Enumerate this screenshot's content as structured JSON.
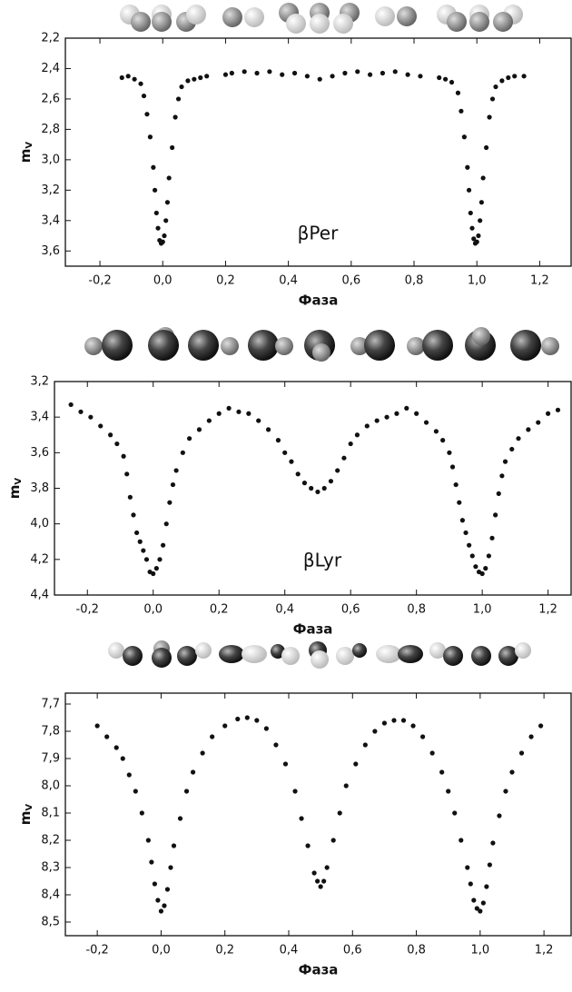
{
  "chart_data": [
    {
      "type": "scatter",
      "annotation": "βPer",
      "xlabel": "Фаза",
      "ylabel": "m",
      "ylabel_sub": "V",
      "color": "#111111",
      "xlim": [
        -0.31,
        1.3
      ],
      "ylim": [
        3.7,
        2.2
      ],
      "xticks": [
        {
          "value": -0.2,
          "label": "-0,2"
        },
        {
          "value": 0,
          "label": "0,0"
        },
        {
          "value": 0.2,
          "label": "0,2"
        },
        {
          "value": 0.4,
          "label": "0,4"
        },
        {
          "value": 0.6,
          "label": "0,6"
        },
        {
          "value": 0.8,
          "label": "0,8"
        },
        {
          "value": 1,
          "label": "1,0"
        },
        {
          "value": 1.2,
          "label": "1,2"
        }
      ],
      "yticks": [
        {
          "value": 2.2,
          "label": "2,2"
        },
        {
          "value": 2.4,
          "label": "2,4"
        },
        {
          "value": 2.6,
          "label": "2,6"
        },
        {
          "value": 2.8,
          "label": "2,8"
        },
        {
          "value": 3,
          "label": "3,0"
        },
        {
          "value": 3.2,
          "label": "3,2"
        },
        {
          "value": 3.4,
          "label": "3,4"
        },
        {
          "value": 3.6,
          "label": "3,6"
        }
      ],
      "x": [
        -0.13,
        -0.11,
        -0.09,
        -0.07,
        -0.06,
        -0.05,
        -0.04,
        -0.03,
        -0.025,
        -0.02,
        -0.015,
        -0.01,
        -0.005,
        0,
        0.005,
        0.01,
        0.015,
        0.02,
        0.03,
        0.04,
        0.05,
        0.06,
        0.08,
        0.1,
        0.12,
        0.14,
        0.2,
        0.22,
        0.26,
        0.3,
        0.34,
        0.38,
        0.42,
        0.46,
        0.5,
        0.54,
        0.58,
        0.62,
        0.66,
        0.7,
        0.74,
        0.78,
        0.82,
        0.88,
        0.9,
        0.92,
        0.94,
        0.95,
        0.96,
        0.97,
        0.975,
        0.98,
        0.985,
        0.99,
        0.995,
        1,
        1.005,
        1.01,
        1.015,
        1.02,
        1.03,
        1.04,
        1.05,
        1.06,
        1.08,
        1.1,
        1.12,
        1.15
      ],
      "y": [
        2.46,
        2.45,
        2.47,
        2.5,
        2.58,
        2.7,
        2.85,
        3.05,
        3.2,
        3.35,
        3.45,
        3.53,
        3.55,
        3.54,
        3.5,
        3.4,
        3.28,
        3.12,
        2.92,
        2.72,
        2.6,
        2.52,
        2.48,
        2.47,
        2.46,
        2.45,
        2.44,
        2.43,
        2.42,
        2.43,
        2.42,
        2.44,
        2.43,
        2.45,
        2.47,
        2.45,
        2.43,
        2.42,
        2.44,
        2.43,
        2.42,
        2.44,
        2.45,
        2.46,
        2.47,
        2.49,
        2.56,
        2.68,
        2.85,
        3.05,
        3.2,
        3.35,
        3.45,
        3.52,
        3.55,
        3.54,
        3.5,
        3.4,
        3.28,
        3.12,
        2.92,
        2.72,
        2.6,
        2.52,
        2.48,
        2.46,
        2.45,
        2.45
      ]
    },
    {
      "type": "scatter",
      "annotation": "βLyr",
      "xlabel": "Фаза",
      "ylabel": "m",
      "ylabel_sub": "V",
      "color": "#111111",
      "xlim": [
        -0.3,
        1.27
      ],
      "ylim": [
        4.4,
        3.2
      ],
      "xticks": [
        {
          "value": -0.2,
          "label": "-0,2"
        },
        {
          "value": 0,
          "label": "0,0"
        },
        {
          "value": 0.2,
          "label": "0,2"
        },
        {
          "value": 0.4,
          "label": "0,4"
        },
        {
          "value": 0.6,
          "label": "0,6"
        },
        {
          "value": 0.8,
          "label": "0,8"
        },
        {
          "value": 1,
          "label": "1,0"
        },
        {
          "value": 1.2,
          "label": "1,2"
        }
      ],
      "yticks": [
        {
          "value": 3.2,
          "label": "3,2"
        },
        {
          "value": 3.4,
          "label": "3,4"
        },
        {
          "value": 3.6,
          "label": "3,6"
        },
        {
          "value": 3.8,
          "label": "3,8"
        },
        {
          "value": 4,
          "label": "4,0"
        },
        {
          "value": 4.2,
          "label": "4,2"
        },
        {
          "value": 4.4,
          "label": "4,4"
        }
      ],
      "x": [
        -0.25,
        -0.22,
        -0.19,
        -0.16,
        -0.13,
        -0.11,
        -0.09,
        -0.08,
        -0.07,
        -0.06,
        -0.05,
        -0.04,
        -0.03,
        -0.02,
        -0.01,
        0,
        0.01,
        0.02,
        0.03,
        0.04,
        0.05,
        0.06,
        0.07,
        0.09,
        0.11,
        0.14,
        0.17,
        0.2,
        0.23,
        0.26,
        0.29,
        0.32,
        0.35,
        0.38,
        0.4,
        0.42,
        0.44,
        0.46,
        0.48,
        0.5,
        0.52,
        0.54,
        0.56,
        0.58,
        0.6,
        0.62,
        0.65,
        0.68,
        0.71,
        0.74,
        0.77,
        0.8,
        0.83,
        0.86,
        0.88,
        0.9,
        0.91,
        0.92,
        0.93,
        0.94,
        0.95,
        0.96,
        0.97,
        0.98,
        0.99,
        1,
        1.01,
        1.02,
        1.03,
        1.04,
        1.05,
        1.06,
        1.07,
        1.09,
        1.11,
        1.14,
        1.17,
        1.2,
        1.23
      ],
      "y": [
        3.33,
        3.37,
        3.4,
        3.45,
        3.5,
        3.55,
        3.62,
        3.72,
        3.85,
        3.95,
        4.05,
        4.1,
        4.15,
        4.2,
        4.27,
        4.28,
        4.25,
        4.2,
        4.12,
        4,
        3.88,
        3.78,
        3.7,
        3.6,
        3.52,
        3.47,
        3.42,
        3.38,
        3.35,
        3.37,
        3.38,
        3.42,
        3.47,
        3.53,
        3.6,
        3.65,
        3.72,
        3.77,
        3.8,
        3.82,
        3.8,
        3.76,
        3.7,
        3.63,
        3.55,
        3.5,
        3.45,
        3.42,
        3.4,
        3.38,
        3.35,
        3.38,
        3.43,
        3.48,
        3.53,
        3.6,
        3.68,
        3.78,
        3.88,
        3.98,
        4.05,
        4.12,
        4.18,
        4.24,
        4.27,
        4.28,
        4.25,
        4.18,
        4.08,
        3.95,
        3.83,
        3.73,
        3.65,
        3.58,
        3.52,
        3.47,
        3.43,
        3.38,
        3.36
      ]
    },
    {
      "type": "scatter",
      "xlabel": "Фаза",
      "ylabel": "m",
      "ylabel_sub": "V",
      "color": "#111111",
      "xlim": [
        -0.3,
        1.285
      ],
      "ylim": [
        8.55,
        7.66
      ],
      "xticks": [
        {
          "value": -0.2,
          "label": "-0,2"
        },
        {
          "value": 0,
          "label": "0,0"
        },
        {
          "value": 0.2,
          "label": "0,2"
        },
        {
          "value": 0.4,
          "label": "0,4"
        },
        {
          "value": 0.6,
          "label": "0,6"
        },
        {
          "value": 0.8,
          "label": "0,8"
        },
        {
          "value": 1,
          "label": "1,0"
        },
        {
          "value": 1.2,
          "label": "1,2"
        }
      ],
      "yticks": [
        {
          "value": 7.7,
          "label": "7,7"
        },
        {
          "value": 7.8,
          "label": "7,8"
        },
        {
          "value": 7.9,
          "label": "7,9"
        },
        {
          "value": 8,
          "label": "8,0"
        },
        {
          "value": 8.1,
          "label": "8,1"
        },
        {
          "value": 8.2,
          "label": "8,2"
        },
        {
          "value": 8.3,
          "label": "8,3"
        },
        {
          "value": 8.4,
          "label": "8,4"
        },
        {
          "value": 8.5,
          "label": "8,5"
        }
      ],
      "x": [
        -0.2,
        -0.17,
        -0.14,
        -0.12,
        -0.1,
        -0.08,
        -0.06,
        -0.04,
        -0.03,
        -0.02,
        -0.01,
        0,
        0.01,
        0.02,
        0.03,
        0.04,
        0.06,
        0.08,
        0.1,
        0.13,
        0.16,
        0.2,
        0.24,
        0.27,
        0.3,
        0.33,
        0.36,
        0.39,
        0.42,
        0.44,
        0.46,
        0.48,
        0.49,
        0.5,
        0.51,
        0.52,
        0.54,
        0.56,
        0.58,
        0.61,
        0.64,
        0.67,
        0.7,
        0.73,
        0.76,
        0.79,
        0.82,
        0.85,
        0.88,
        0.9,
        0.92,
        0.94,
        0.96,
        0.97,
        0.98,
        0.99,
        1,
        1.01,
        1.02,
        1.03,
        1.04,
        1.06,
        1.08,
        1.1,
        1.13,
        1.16,
        1.19
      ],
      "y": [
        7.78,
        7.82,
        7.86,
        7.9,
        7.96,
        8.02,
        8.1,
        8.2,
        8.28,
        8.36,
        8.42,
        8.46,
        8.44,
        8.38,
        8.3,
        8.22,
        8.12,
        8.02,
        7.95,
        7.88,
        7.82,
        7.78,
        7.755,
        7.75,
        7.76,
        7.79,
        7.85,
        7.92,
        8.02,
        8.12,
        8.22,
        8.32,
        8.35,
        8.37,
        8.35,
        8.3,
        8.2,
        8.1,
        8,
        7.92,
        7.85,
        7.8,
        7.77,
        7.76,
        7.76,
        7.78,
        7.82,
        7.88,
        7.95,
        8.02,
        8.1,
        8.2,
        8.3,
        8.36,
        8.42,
        8.45,
        8.46,
        8.43,
        8.37,
        8.29,
        8.21,
        8.11,
        8.02,
        7.95,
        7.88,
        7.82,
        7.78
      ]
    }
  ]
}
